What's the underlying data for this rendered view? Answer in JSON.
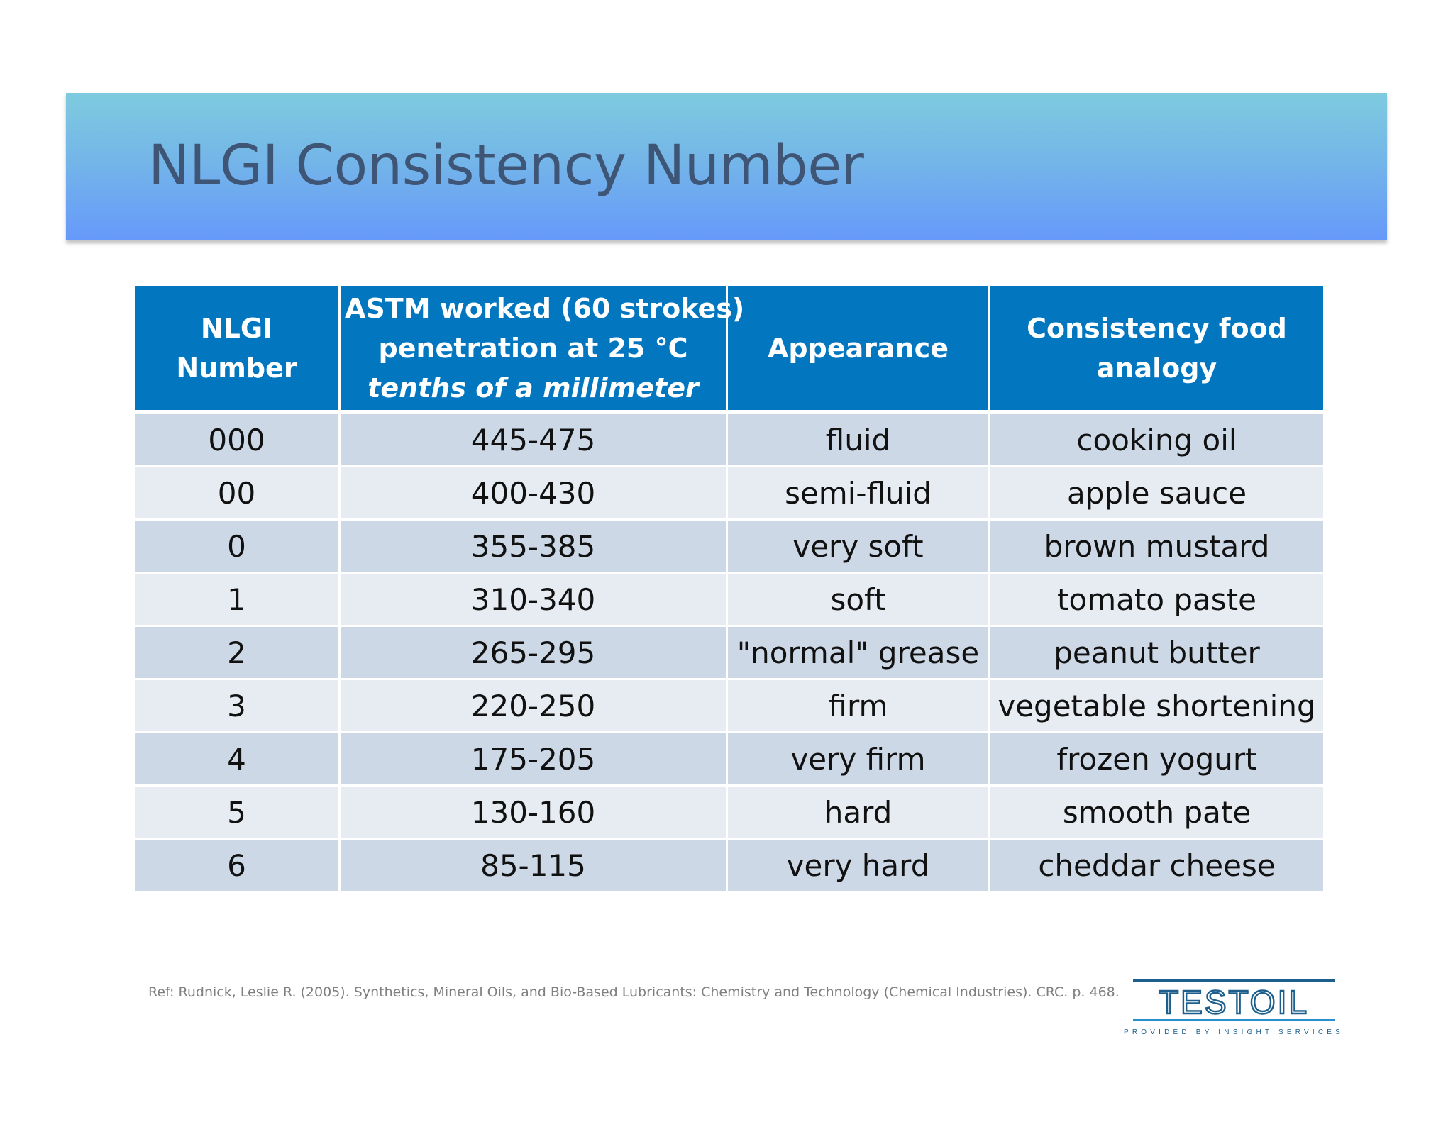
{
  "slide": {
    "title": "NLGI Consistency Number"
  },
  "table": {
    "headers": {
      "col1": [
        "NLGI",
        "Number"
      ],
      "col2": [
        "ASTM worked (60 strokes)",
        "penetration at 25 °C",
        "tenths of a millimeter"
      ],
      "col3": [
        "Appearance"
      ],
      "col4": [
        "Consistency food",
        "analogy"
      ]
    },
    "rows": [
      {
        "nlgi": "000",
        "penetration": "445-475",
        "appearance": "fluid",
        "food": "cooking oil"
      },
      {
        "nlgi": "00",
        "penetration": "400-430",
        "appearance": "semi-fluid",
        "food": "apple sauce"
      },
      {
        "nlgi": "0",
        "penetration": "355-385",
        "appearance": "very soft",
        "food": "brown mustard"
      },
      {
        "nlgi": "1",
        "penetration": "310-340",
        "appearance": "soft",
        "food": "tomato paste"
      },
      {
        "nlgi": "2",
        "penetration": "265-295",
        "appearance": "\"normal\" grease",
        "food": "peanut butter"
      },
      {
        "nlgi": "3",
        "penetration": "220-250",
        "appearance": "firm",
        "food": "vegetable shortening"
      },
      {
        "nlgi": "4",
        "penetration": "175-205",
        "appearance": "very firm",
        "food": "frozen yogurt"
      },
      {
        "nlgi": "5",
        "penetration": "130-160",
        "appearance": "hard",
        "food": "smooth pate"
      },
      {
        "nlgi": "6",
        "penetration": "85-115",
        "appearance": "very hard",
        "food": "cheddar cheese"
      }
    ]
  },
  "footer": {
    "reference": "Ref: Rudnick, Leslie R. (2005). Synthetics, Mineral Oils, and Bio-Based Lubricants: Chemistry and Technology (Chemical Industries). CRC. p. 468."
  },
  "logo": {
    "name": "TESTOIL",
    "tagline": "PROVIDED BY INSIGHT SERVICES",
    "colors": {
      "primary": "#1d5f8c",
      "accent": "#2a8fd0"
    }
  }
}
